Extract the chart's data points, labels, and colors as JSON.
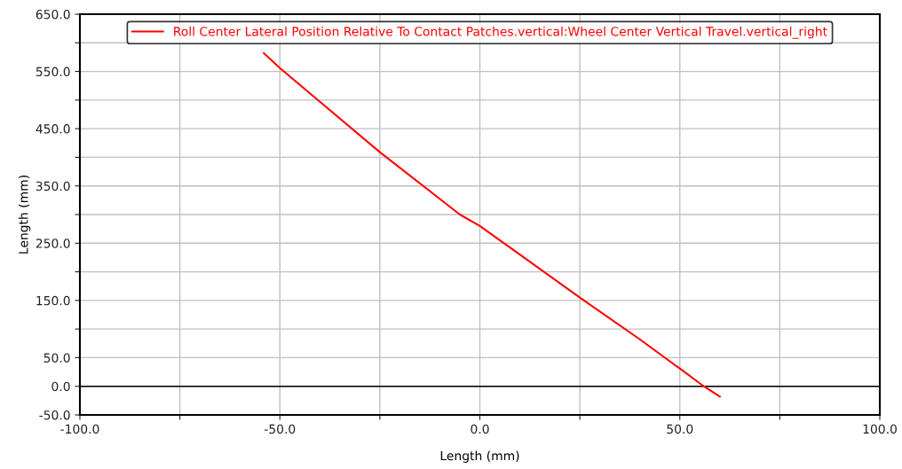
{
  "chart_data": {
    "type": "line",
    "xlabel": "Length (mm)",
    "ylabel": "Length (mm)",
    "x": [
      -54,
      -50,
      -40,
      -25,
      -5,
      0,
      10,
      25,
      40,
      50,
      56,
      60
    ],
    "series": [
      {
        "name": "Roll Center Lateral Position Relative To Contact Patches.vertical:Wheel Center Vertical Travel.vertical_right",
        "color": "#ff0000",
        "values": [
          582,
          556,
          497,
          409,
          300,
          280,
          230,
          155,
          82,
          31,
          0,
          -18
        ]
      }
    ],
    "xlim": [
      -100,
      100
    ],
    "xticks": [
      {
        "value": -100,
        "label": "-100.0"
      },
      {
        "value": -75,
        "label": null
      },
      {
        "value": -50,
        "label": "-50.0"
      },
      {
        "value": -25,
        "label": null
      },
      {
        "value": 0,
        "label": "0.0"
      },
      {
        "value": 25,
        "label": null
      },
      {
        "value": 50,
        "label": "50.0"
      },
      {
        "value": 75,
        "label": null
      },
      {
        "value": 100,
        "label": "100.0"
      }
    ],
    "ylim": [
      -50,
      650
    ],
    "yticks": [
      {
        "value": -50,
        "label": "-50.0"
      },
      {
        "value": 0,
        "label": "0.0"
      },
      {
        "value": 50,
        "label": "50.0"
      },
      {
        "value": 100,
        "label": null
      },
      {
        "value": 150,
        "label": "150.0"
      },
      {
        "value": 200,
        "label": null
      },
      {
        "value": 250,
        "label": "250.0"
      },
      {
        "value": 300,
        "label": null
      },
      {
        "value": 350,
        "label": "350.0"
      },
      {
        "value": 400,
        "label": null
      },
      {
        "value": 450,
        "label": "450.0"
      },
      {
        "value": 500,
        "label": null
      },
      {
        "value": 550,
        "label": "550.0"
      },
      {
        "value": 600,
        "label": null
      },
      {
        "value": 650,
        "label": "650.0"
      }
    ],
    "ref_lines": [
      {
        "axis": "y",
        "value": 0,
        "label": null,
        "color": "#000000"
      }
    ],
    "grid": true,
    "legend": "top",
    "marker": "none",
    "line_style": "solid"
  }
}
